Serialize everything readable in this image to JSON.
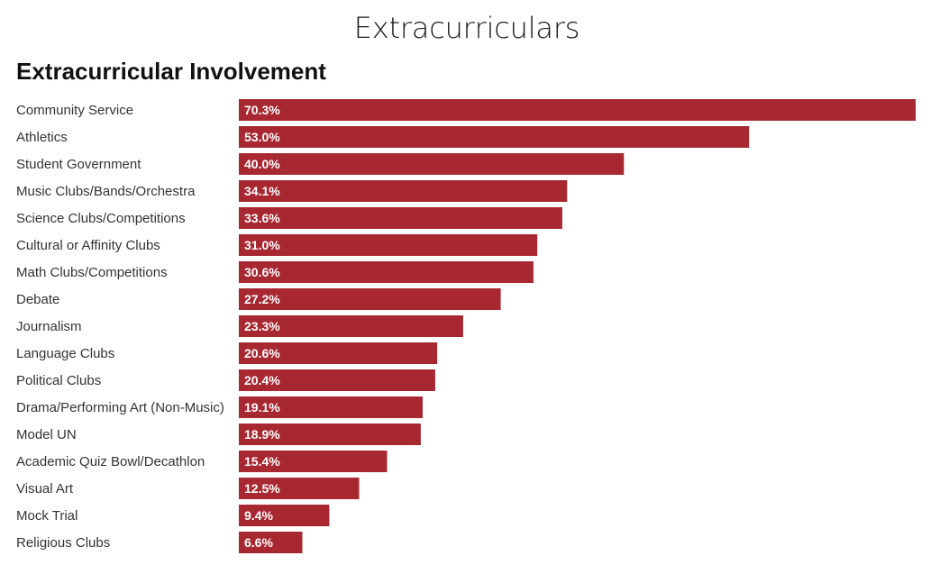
{
  "page": {
    "heading": "Extracurriculars"
  },
  "chart_data": {
    "type": "bar",
    "orientation": "horizontal",
    "title": "Extracurricular Involvement",
    "xlabel": "",
    "ylabel": "",
    "xlim": [
      0,
      70.3
    ],
    "grid": false,
    "legend": "none",
    "bar_color": "#a82832",
    "categories": [
      "Community Service",
      "Athletics",
      "Student Government",
      "Music Clubs/Bands/Orchestra",
      "Science Clubs/Competitions",
      "Cultural or Affinity Clubs",
      "Math Clubs/Competitions",
      "Debate",
      "Journalism",
      "Language Clubs",
      "Political Clubs",
      "Drama/Performing Art (Non-Music)",
      "Model UN",
      "Academic Quiz Bowl/Decathlon",
      "Visual Art",
      "Mock Trial",
      "Religious Clubs"
    ],
    "values": [
      70.3,
      53.0,
      40.0,
      34.1,
      33.6,
      31.0,
      30.6,
      27.2,
      23.3,
      20.6,
      20.4,
      19.1,
      18.9,
      15.4,
      12.5,
      9.4,
      6.6
    ],
    "value_labels": [
      "70.3%",
      "53.0%",
      "40.0%",
      "34.1%",
      "33.6%",
      "31.0%",
      "30.6%",
      "27.2%",
      "23.3%",
      "20.6%",
      "20.4%",
      "19.1%",
      "18.9%",
      "15.4%",
      "12.5%",
      "9.4%",
      "6.6%"
    ]
  }
}
